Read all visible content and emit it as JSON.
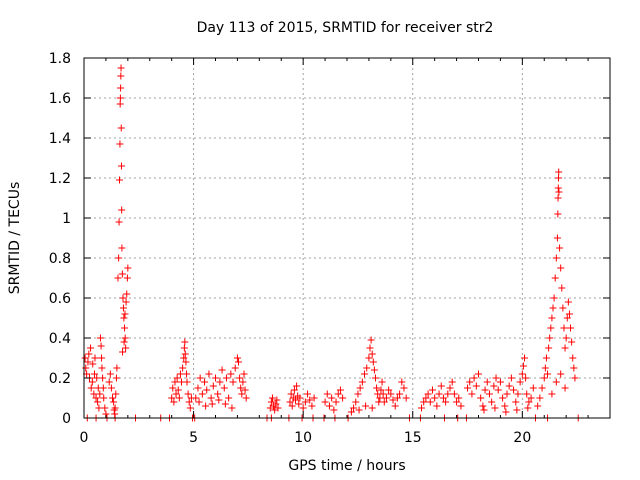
{
  "chart_data": {
    "type": "scatter",
    "title": "Day 113 of 2015, SRMTID for receiver str2",
    "xlabel": "GPS time / hours",
    "ylabel": "SRMTID / TECUs",
    "xlim": [
      0,
      24
    ],
    "ylim": [
      0,
      1.8
    ],
    "xticks": [
      0,
      5,
      10,
      15,
      20
    ],
    "yticks": [
      0,
      0.2,
      0.4,
      0.6,
      0.8,
      1,
      1.2,
      1.4,
      1.6,
      1.8
    ],
    "ytick_labels": [
      "0",
      "0.2",
      "0.4",
      "0.6",
      "0.8",
      "1",
      "1.2",
      "1.4",
      "1.6",
      "1.8"
    ],
    "grid": true,
    "marker": "+",
    "color": "#ff0000",
    "series": [
      {
        "name": "str2",
        "points": [
          [
            0.05,
            0.3
          ],
          [
            0.08,
            0.25
          ],
          [
            0.12,
            0.22
          ],
          [
            0.18,
            0.28
          ],
          [
            0.22,
            0.32
          ],
          [
            0.25,
            0.2
          ],
          [
            0.3,
            0.35
          ],
          [
            0.33,
            0.15
          ],
          [
            0.38,
            0.18
          ],
          [
            0.4,
            0.27
          ],
          [
            0.45,
            0.12
          ],
          [
            0.48,
            0.22
          ],
          [
            0.5,
            0.3
          ],
          [
            0.55,
            0.1
          ],
          [
            0.58,
            0.2
          ],
          [
            0.62,
            0.08
          ],
          [
            0.65,
            0.15
          ],
          [
            0.68,
            0.05
          ],
          [
            0.72,
            0.12
          ],
          [
            0.75,
            0.4
          ],
          [
            0.78,
            0.36
          ],
          [
            0.8,
            0.3
          ],
          [
            0.82,
            0.25
          ],
          [
            0.85,
            0.2
          ],
          [
            0.88,
            0.15
          ],
          [
            0.9,
            0.1
          ],
          [
            0.95,
            0.05
          ],
          [
            1.0,
            0.02
          ],
          [
            1.15,
            0.18
          ],
          [
            1.2,
            0.22
          ],
          [
            1.25,
            0.15
          ],
          [
            1.3,
            0.1
          ],
          [
            1.35,
            0.08
          ],
          [
            1.38,
            0.04
          ],
          [
            1.4,
            0.02
          ],
          [
            1.42,
            0.05
          ],
          [
            1.45,
            0.12
          ],
          [
            1.48,
            0.2
          ],
          [
            1.5,
            0.25
          ],
          [
            1.55,
            0.7
          ],
          [
            1.58,
            0.8
          ],
          [
            1.6,
            0.98
          ],
          [
            1.62,
            1.19
          ],
          [
            1.64,
            1.37
          ],
          [
            1.65,
            1.57
          ],
          [
            1.66,
            1.6
          ],
          [
            1.67,
            1.65
          ],
          [
            1.68,
            1.71
          ],
          [
            1.69,
            1.75
          ],
          [
            1.7,
            1.45
          ],
          [
            1.71,
            1.26
          ],
          [
            1.72,
            1.04
          ],
          [
            1.73,
            0.85
          ],
          [
            1.75,
            0.72
          ],
          [
            1.78,
            0.6
          ],
          [
            1.8,
            0.55
          ],
          [
            1.82,
            0.5
          ],
          [
            1.85,
            0.45
          ],
          [
            1.88,
            0.4
          ],
          [
            1.9,
            0.35
          ],
          [
            1.92,
            0.58
          ],
          [
            1.95,
            0.62
          ],
          [
            1.98,
            0.7
          ],
          [
            2.0,
            0.75
          ],
          [
            1.76,
            0.33
          ],
          [
            1.83,
            0.38
          ],
          [
            1.87,
            0.52
          ],
          [
            4.0,
            0.1
          ],
          [
            4.05,
            0.15
          ],
          [
            4.1,
            0.08
          ],
          [
            4.15,
            0.18
          ],
          [
            4.2,
            0.12
          ],
          [
            4.25,
            0.2
          ],
          [
            4.3,
            0.14
          ],
          [
            4.35,
            0.1
          ],
          [
            4.4,
            0.22
          ],
          [
            4.45,
            0.18
          ],
          [
            4.5,
            0.25
          ],
          [
            4.55,
            0.3
          ],
          [
            4.58,
            0.35
          ],
          [
            4.6,
            0.38
          ],
          [
            4.62,
            0.32
          ],
          [
            4.65,
            0.28
          ],
          [
            4.68,
            0.22
          ],
          [
            4.7,
            0.18
          ],
          [
            4.75,
            0.12
          ],
          [
            4.8,
            0.08
          ],
          [
            4.85,
            0.05
          ],
          [
            4.9,
            0.1
          ],
          [
            5.1,
            0.1
          ],
          [
            5.2,
            0.15
          ],
          [
            5.3,
            0.2
          ],
          [
            5.4,
            0.12
          ],
          [
            5.5,
            0.18
          ],
          [
            5.6,
            0.14
          ],
          [
            5.7,
            0.22
          ],
          [
            5.8,
            0.1
          ],
          [
            5.9,
            0.16
          ],
          [
            6.0,
            0.2
          ],
          [
            6.1,
            0.12
          ],
          [
            6.2,
            0.18
          ],
          [
            6.3,
            0.24
          ],
          [
            6.4,
            0.15
          ],
          [
            6.5,
            0.2
          ],
          [
            6.6,
            0.1
          ],
          [
            6.7,
            0.22
          ],
          [
            6.8,
            0.18
          ],
          [
            6.9,
            0.25
          ],
          [
            7.0,
            0.3
          ],
          [
            7.05,
            0.28
          ],
          [
            7.1,
            0.2
          ],
          [
            7.15,
            0.15
          ],
          [
            7.2,
            0.12
          ],
          [
            7.25,
            0.18
          ],
          [
            7.3,
            0.22
          ],
          [
            7.35,
            0.14
          ],
          [
            7.4,
            0.1
          ],
          [
            5.25,
            0.08
          ],
          [
            5.55,
            0.06
          ],
          [
            5.85,
            0.07
          ],
          [
            6.15,
            0.09
          ],
          [
            6.45,
            0.07
          ],
          [
            6.75,
            0.05
          ],
          [
            8.5,
            0.05
          ],
          [
            8.55,
            0.08
          ],
          [
            8.6,
            0.1
          ],
          [
            8.65,
            0.06
          ],
          [
            8.7,
            0.04
          ],
          [
            8.75,
            0.07
          ],
          [
            8.8,
            0.09
          ],
          [
            8.85,
            0.05
          ],
          [
            9.4,
            0.08
          ],
          [
            9.45,
            0.12
          ],
          [
            9.5,
            0.06
          ],
          [
            9.55,
            0.1
          ],
          [
            9.6,
            0.14
          ],
          [
            9.65,
            0.09
          ],
          [
            9.7,
            0.16
          ],
          [
            9.75,
            0.11
          ],
          [
            9.8,
            0.07
          ],
          [
            9.85,
            0.1
          ],
          [
            10.0,
            0.05
          ],
          [
            10.1,
            0.08
          ],
          [
            10.2,
            0.12
          ],
          [
            10.3,
            0.09
          ],
          [
            10.4,
            0.06
          ],
          [
            10.5,
            0.1
          ],
          [
            11.0,
            0.08
          ],
          [
            11.1,
            0.12
          ],
          [
            11.2,
            0.06
          ],
          [
            11.3,
            0.1
          ],
          [
            11.4,
            0.04
          ],
          [
            11.5,
            0.08
          ],
          [
            11.6,
            0.12
          ],
          [
            11.7,
            0.14
          ],
          [
            11.8,
            0.1
          ],
          [
            12.2,
            0.03
          ],
          [
            12.3,
            0.05
          ],
          [
            12.4,
            0.08
          ],
          [
            12.5,
            0.12
          ],
          [
            12.6,
            0.15
          ],
          [
            12.7,
            0.18
          ],
          [
            12.8,
            0.22
          ],
          [
            12.9,
            0.25
          ],
          [
            13.0,
            0.3
          ],
          [
            13.05,
            0.35
          ],
          [
            13.1,
            0.39
          ],
          [
            13.15,
            0.32
          ],
          [
            13.2,
            0.28
          ],
          [
            13.25,
            0.24
          ],
          [
            13.3,
            0.2
          ],
          [
            13.35,
            0.15
          ],
          [
            13.4,
            0.12
          ],
          [
            13.45,
            0.08
          ],
          [
            13.5,
            0.1
          ],
          [
            13.55,
            0.14
          ],
          [
            13.6,
            0.18
          ],
          [
            13.65,
            0.12
          ],
          [
            13.7,
            0.08
          ],
          [
            13.8,
            0.1
          ],
          [
            13.9,
            0.14
          ],
          [
            14.0,
            0.12
          ],
          [
            14.1,
            0.09
          ],
          [
            14.2,
            0.06
          ],
          [
            14.3,
            0.1
          ],
          [
            14.4,
            0.12
          ],
          [
            14.5,
            0.18
          ],
          [
            14.6,
            0.15
          ],
          [
            14.7,
            0.1
          ],
          [
            12.55,
            0.04
          ],
          [
            12.85,
            0.06
          ],
          [
            13.15,
            0.05
          ],
          [
            15.4,
            0.05
          ],
          [
            15.5,
            0.08
          ],
          [
            15.6,
            0.1
          ],
          [
            15.7,
            0.12
          ],
          [
            15.8,
            0.08
          ],
          [
            15.9,
            0.14
          ],
          [
            16.0,
            0.1
          ],
          [
            16.1,
            0.06
          ],
          [
            16.2,
            0.12
          ],
          [
            16.3,
            0.16
          ],
          [
            16.4,
            0.1
          ],
          [
            16.5,
            0.08
          ],
          [
            16.6,
            0.12
          ],
          [
            16.7,
            0.15
          ],
          [
            16.8,
            0.18
          ],
          [
            16.9,
            0.12
          ],
          [
            17.0,
            0.08
          ],
          [
            17.1,
            0.1
          ],
          [
            17.2,
            0.06
          ],
          [
            17.5,
            0.15
          ],
          [
            17.6,
            0.18
          ],
          [
            17.7,
            0.12
          ],
          [
            17.8,
            0.2
          ],
          [
            17.9,
            0.16
          ],
          [
            18.0,
            0.22
          ],
          [
            18.1,
            0.1
          ],
          [
            18.2,
            0.06
          ],
          [
            18.3,
            0.14
          ],
          [
            18.4,
            0.18
          ],
          [
            18.5,
            0.12
          ],
          [
            18.6,
            0.08
          ],
          [
            18.7,
            0.16
          ],
          [
            18.8,
            0.2
          ],
          [
            18.9,
            0.14
          ],
          [
            19.0,
            0.18
          ],
          [
            19.1,
            0.1
          ],
          [
            19.2,
            0.06
          ],
          [
            19.3,
            0.12
          ],
          [
            19.4,
            0.16
          ],
          [
            19.5,
            0.2
          ],
          [
            19.6,
            0.14
          ],
          [
            19.7,
            0.08
          ],
          [
            19.8,
            0.12
          ],
          [
            19.9,
            0.18
          ],
          [
            20.0,
            0.22
          ],
          [
            20.05,
            0.26
          ],
          [
            20.1,
            0.3
          ],
          [
            20.15,
            0.2
          ],
          [
            20.2,
            0.12
          ],
          [
            20.3,
            0.08
          ],
          [
            20.4,
            0.1
          ],
          [
            20.5,
            0.15
          ],
          [
            18.25,
            0.04
          ],
          [
            18.75,
            0.05
          ],
          [
            19.25,
            0.03
          ],
          [
            19.75,
            0.04
          ],
          [
            20.25,
            0.05
          ],
          [
            20.7,
            0.06
          ],
          [
            20.8,
            0.1
          ],
          [
            20.9,
            0.15
          ],
          [
            21.0,
            0.2
          ],
          [
            21.05,
            0.25
          ],
          [
            21.1,
            0.3
          ],
          [
            21.15,
            0.22
          ],
          [
            21.2,
            0.35
          ],
          [
            21.25,
            0.4
          ],
          [
            21.3,
            0.45
          ],
          [
            21.35,
            0.5
          ],
          [
            21.4,
            0.55
          ],
          [
            21.45,
            0.6
          ],
          [
            21.5,
            0.7
          ],
          [
            21.55,
            0.8
          ],
          [
            21.6,
            0.9
          ],
          [
            21.62,
            1.02
          ],
          [
            21.63,
            1.1
          ],
          [
            21.64,
            1.15
          ],
          [
            21.65,
            1.2
          ],
          [
            21.66,
            1.23
          ],
          [
            21.67,
            1.13
          ],
          [
            21.7,
            0.85
          ],
          [
            21.75,
            0.75
          ],
          [
            21.8,
            0.65
          ],
          [
            21.85,
            0.55
          ],
          [
            21.9,
            0.45
          ],
          [
            21.95,
            0.35
          ],
          [
            22.0,
            0.4
          ],
          [
            22.05,
            0.5
          ],
          [
            22.1,
            0.58
          ],
          [
            22.15,
            0.52
          ],
          [
            22.2,
            0.45
          ],
          [
            22.25,
            0.38
          ],
          [
            22.3,
            0.3
          ],
          [
            22.35,
            0.25
          ],
          [
            22.4,
            0.2
          ],
          [
            21.35,
            0.12
          ],
          [
            21.55,
            0.18
          ],
          [
            21.75,
            0.22
          ],
          [
            21.95,
            0.15
          ]
        ]
      }
    ],
    "baseline_points": [
      0.15,
      0.55,
      1.05,
      1.42,
      2.35,
      3.5,
      3.9,
      4.95,
      5.05,
      8.35,
      8.55,
      9.35,
      9.95,
      10.45,
      10.95,
      11.45,
      12.05,
      14.85,
      15.35,
      16.45,
      17.05,
      17.45,
      20.6,
      21.15,
      22.55
    ]
  }
}
